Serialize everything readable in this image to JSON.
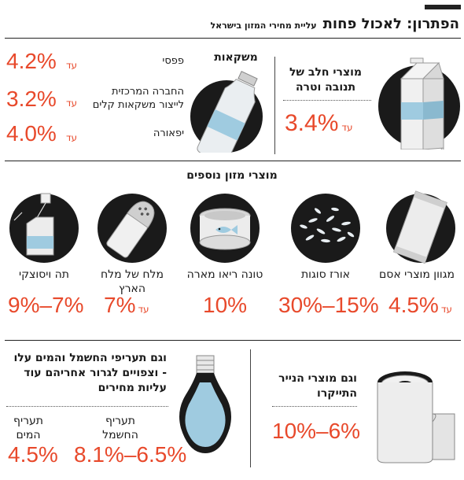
{
  "header": {
    "title": "הפתרון: לאכול פחות",
    "subtitle": "עליית מחירי המזון בישראל"
  },
  "drinks": {
    "heading": "משקאות",
    "rows": [
      {
        "name": "פפסי",
        "prefix": "עד",
        "value": "4.2%"
      },
      {
        "name": "החברה המרכזית לייצור משקאות קלים",
        "prefix": "עד",
        "value": "3.2%"
      },
      {
        "name": "יפאורה",
        "prefix": "עד",
        "value": "4.0%"
      }
    ]
  },
  "milk": {
    "label": "מוצרי חלב של תנובה וטרה",
    "prefix": "עד",
    "value": "3.4%"
  },
  "more_food": {
    "heading": "מוצרי מזון נוספים",
    "items": [
      {
        "label": "מגוון מוצרי אסם",
        "prefix": "עד",
        "value": "4.5%"
      },
      {
        "label": "אורז סוגות",
        "prefix": "",
        "value": "30%–15%"
      },
      {
        "label": "טונה ריאו מארה",
        "prefix": "",
        "value": "10%"
      },
      {
        "label": "מלח של מלח הארץ",
        "prefix": "עד",
        "value": "7%"
      },
      {
        "label": "תה ויסוצקי",
        "prefix": "",
        "value": "9%–7%"
      }
    ]
  },
  "utilities": {
    "text": "וגם תעריפי החשמל והמים עלו - וצפויים לגרור אחריהם עוד עליות מחירים",
    "electricity_label": "תעריף החשמל",
    "electricity_value": "8.1%–6.5%",
    "water_label": "תעריף המים",
    "water_value": "4.5%"
  },
  "paper": {
    "label": "וגם מוצרי הנייר התייקרו",
    "value": "10%–6%"
  },
  "colors": {
    "accent": "#e8492b",
    "ink": "#1a1a1a",
    "bottle": "#9fcbe0"
  }
}
